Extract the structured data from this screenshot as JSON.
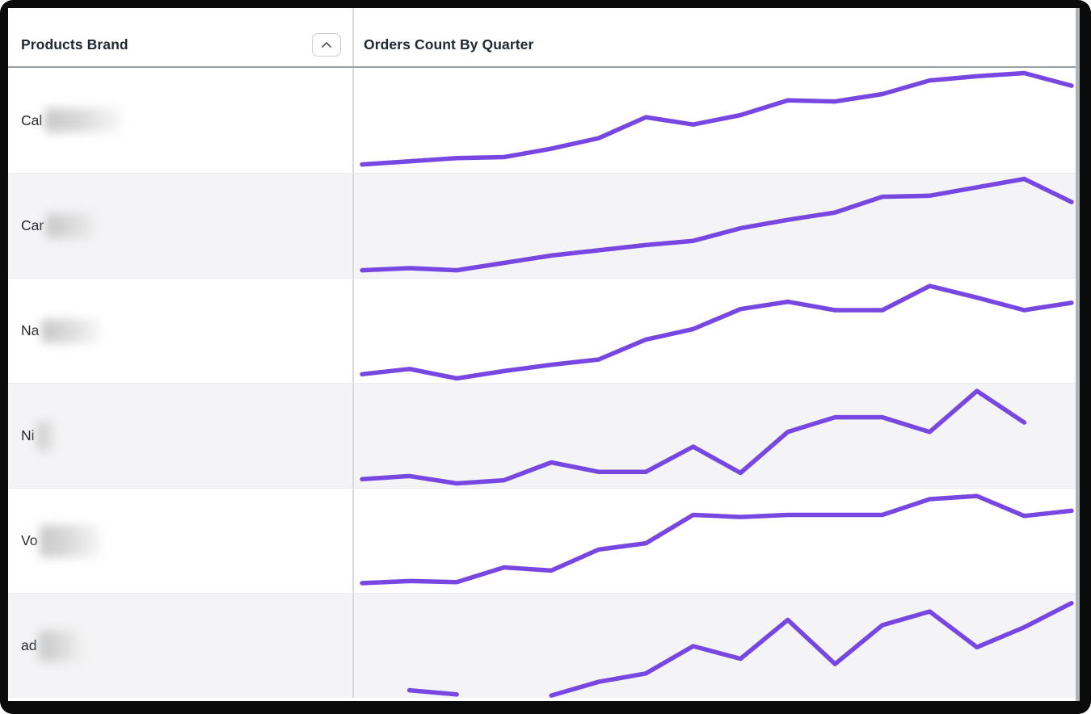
{
  "table": {
    "columns": [
      {
        "label": "Products Brand",
        "sortable": true,
        "sort_direction": "ascending"
      },
      {
        "label": "Orders Count By Quarter",
        "sortable": false
      }
    ]
  },
  "brands": [
    {
      "visible_text": "Cal",
      "rest_redacted": true,
      "blur_w": 95,
      "blur_h": 30
    },
    {
      "visible_text": "Car",
      "rest_redacted": true,
      "blur_w": 72,
      "blur_h": 30
    },
    {
      "visible_text": "Na",
      "rest_redacted": true,
      "blur_w": 72,
      "blur_h": 30
    },
    {
      "visible_text": "Ni",
      "rest_redacted": true,
      "blur_w": 26,
      "blur_h": 36
    },
    {
      "visible_text": "Vo",
      "rest_redacted": true,
      "blur_w": 76,
      "blur_h": 40
    },
    {
      "visible_text": "ad",
      "rest_redacted": true,
      "blur_w": 60,
      "blur_h": 38
    }
  ],
  "chart_data": {
    "type": "line",
    "title": "Orders Count By Quarter",
    "subtitle": "one sparkline per product brand, no axes or tick labels shown",
    "x": "quarters (16 equally spaced points, labels not displayed)",
    "ylabel": "",
    "xlabel": "",
    "grid": false,
    "legend": false,
    "value_scale": "relative 0-100 per row (no numeric labels visible in image); null = missing quarter (gap in line)",
    "series": [
      {
        "name": "Cal (redacted)",
        "values": [
          8,
          11,
          14,
          15,
          23,
          33,
          53,
          46,
          55,
          69,
          68,
          75,
          88,
          92,
          95,
          83
        ]
      },
      {
        "name": "Car (redacted)",
        "values": [
          8,
          10,
          8,
          15,
          22,
          27,
          32,
          36,
          48,
          56,
          63,
          78,
          79,
          87,
          95,
          73
        ]
      },
      {
        "name": "Na (redacted)",
        "values": [
          9,
          14,
          5,
          12,
          18,
          23,
          42,
          52,
          71,
          78,
          70,
          70,
          93,
          82,
          70,
          77
        ]
      },
      {
        "name": "Ni (redacted)",
        "values": [
          9,
          12,
          5,
          8,
          25,
          16,
          16,
          40,
          15,
          54,
          68,
          68,
          54,
          93,
          63,
          null
        ]
      },
      {
        "name": "Vo (redacted)",
        "values": [
          10,
          12,
          11,
          25,
          22,
          42,
          48,
          75,
          73,
          75,
          75,
          75,
          90,
          93,
          74,
          79
        ]
      },
      {
        "name": "ad (redacted)",
        "values": [
          null,
          8,
          4,
          null,
          3,
          16,
          24,
          50,
          38,
          75,
          33,
          70,
          83,
          49,
          68,
          91
        ]
      }
    ]
  },
  "colors": {
    "line": "#7847E1",
    "row_stripe": "#F4F4F6",
    "header_text": "#1E2833",
    "brand_text": "#23272D",
    "header_underline": "#98A0A5",
    "column_divider": "#D9DADC",
    "frame": "#0B0B0C",
    "scrollbar": "#AFB3B6",
    "sort_button_border": "#C8CDD2",
    "sort_chevron": "#555B61"
  },
  "icons": {
    "sort": "chevron-up"
  }
}
